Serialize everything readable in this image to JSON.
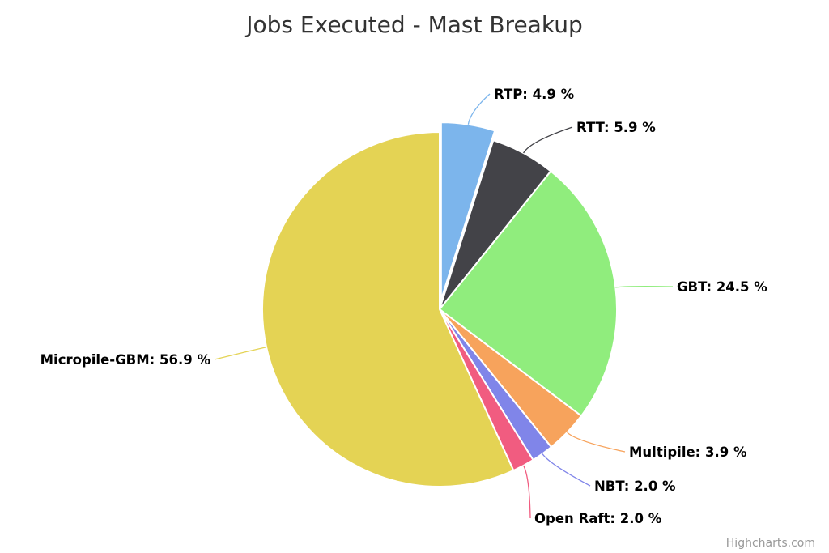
{
  "chart_data": {
    "type": "pie",
    "title": "Jobs Executed - Mast Breakup",
    "unit": "%",
    "slices": [
      {
        "name": "RTP",
        "value": 4.9,
        "color": "#7cb5ec",
        "sliced": true
      },
      {
        "name": "RTT",
        "value": 5.9,
        "color": "#434348"
      },
      {
        "name": "GBT",
        "value": 24.5,
        "color": "#90ed7d"
      },
      {
        "name": "Multipile",
        "value": 3.9,
        "color": "#f7a35c"
      },
      {
        "name": "NBT",
        "value": 2.0,
        "color": "#8085e9"
      },
      {
        "name": "Open Raft",
        "value": 2.0,
        "color": "#f15c80"
      },
      {
        "name": "Micropile-GBM",
        "value": 56.9,
        "color": "#e4d354"
      }
    ],
    "labels": [
      "RTP: 4.9 %",
      "RTT: 5.9 %",
      "GBT: 24.5 %",
      "Multipile: 3.9 %",
      "NBT: 2.0 %",
      "Open Raft: 2.0 %",
      "Micropile-GBM: 56.9 %"
    ],
    "legend": "none"
  },
  "credits": "Highcharts.com"
}
